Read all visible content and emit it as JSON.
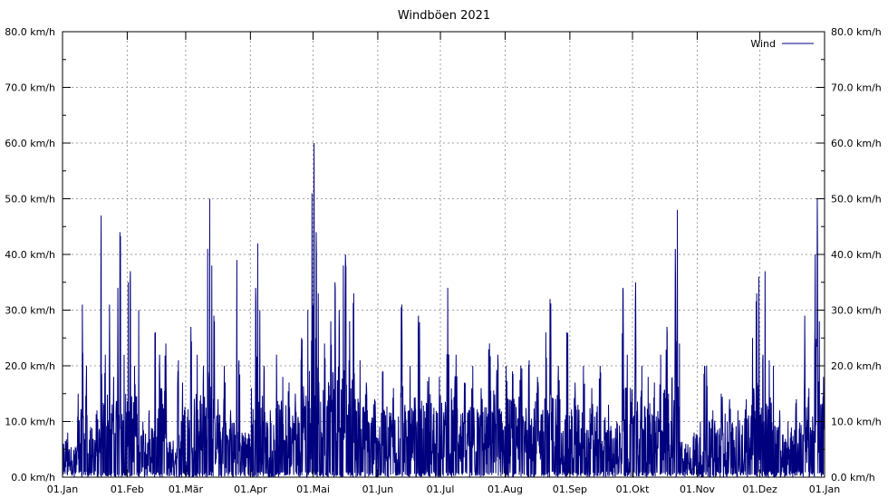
{
  "chart_data": {
    "type": "line",
    "title": "Windböen 2021",
    "xlabel": "",
    "ylabel": "",
    "ylim": [
      0,
      80
    ],
    "yunit": "km/h",
    "y_ticks": [
      "0.0 km/h",
      "10.0 km/h",
      "20.0 km/h",
      "30.0 km/h",
      "40.0 km/h",
      "50.0 km/h",
      "60.0 km/h",
      "70.0 km/h",
      "80.0 km/h"
    ],
    "x_ticks": [
      "01.Jan",
      "01.Feb",
      "01.Mär",
      "01.Apr",
      "01.Mai",
      "01.Jun",
      "01.Jul",
      "01.Aug",
      "01.Sep",
      "01.Okt",
      "01.Nov",
      "01.Dez",
      "01.Jan"
    ],
    "grid": true,
    "legend_position": "top-right",
    "series": [
      {
        "name": "Wind",
        "color": "#00007f",
        "peaks": [
          {
            "x": "2021-01-01",
            "y": 6
          },
          {
            "x": "2021-01-03",
            "y": 8
          },
          {
            "x": "2021-01-05",
            "y": 3
          },
          {
            "x": "2021-01-08",
            "y": 15
          },
          {
            "x": "2021-01-10",
            "y": 31
          },
          {
            "x": "2021-01-12",
            "y": 20
          },
          {
            "x": "2021-01-14",
            "y": 9
          },
          {
            "x": "2021-01-17",
            "y": 12
          },
          {
            "x": "2021-01-19",
            "y": 47
          },
          {
            "x": "2021-01-21",
            "y": 22
          },
          {
            "x": "2021-01-23",
            "y": 31
          },
          {
            "x": "2021-01-25",
            "y": 18
          },
          {
            "x": "2021-01-27",
            "y": 34
          },
          {
            "x": "2021-01-28",
            "y": 44
          },
          {
            "x": "2021-01-30",
            "y": 22
          },
          {
            "x": "2021-02-01",
            "y": 35
          },
          {
            "x": "2021-02-02",
            "y": 37
          },
          {
            "x": "2021-02-04",
            "y": 20
          },
          {
            "x": "2021-02-06",
            "y": 30
          },
          {
            "x": "2021-02-08",
            "y": 10
          },
          {
            "x": "2021-02-11",
            "y": 12
          },
          {
            "x": "2021-02-14",
            "y": 26
          },
          {
            "x": "2021-02-16",
            "y": 22
          },
          {
            "x": "2021-02-19",
            "y": 24
          },
          {
            "x": "2021-02-22",
            "y": 5
          },
          {
            "x": "2021-02-25",
            "y": 21
          },
          {
            "x": "2021-02-27",
            "y": 17
          },
          {
            "x": "2021-03-03",
            "y": 27
          },
          {
            "x": "2021-03-06",
            "y": 22
          },
          {
            "x": "2021-03-09",
            "y": 20
          },
          {
            "x": "2021-03-11",
            "y": 41
          },
          {
            "x": "2021-03-12",
            "y": 50
          },
          {
            "x": "2021-03-13",
            "y": 38
          },
          {
            "x": "2021-03-14",
            "y": 29
          },
          {
            "x": "2021-03-16",
            "y": 14
          },
          {
            "x": "2021-03-19",
            "y": 20
          },
          {
            "x": "2021-03-22",
            "y": 12
          },
          {
            "x": "2021-03-25",
            "y": 39
          },
          {
            "x": "2021-03-26",
            "y": 21
          },
          {
            "x": "2021-03-29",
            "y": 8
          },
          {
            "x": "2021-04-01",
            "y": 16
          },
          {
            "x": "2021-04-03",
            "y": 34
          },
          {
            "x": "2021-04-04",
            "y": 42
          },
          {
            "x": "2021-04-05",
            "y": 30
          },
          {
            "x": "2021-04-07",
            "y": 20
          },
          {
            "x": "2021-04-10",
            "y": 12
          },
          {
            "x": "2021-04-13",
            "y": 22
          },
          {
            "x": "2021-04-16",
            "y": 18
          },
          {
            "x": "2021-04-19",
            "y": 17
          },
          {
            "x": "2021-04-22",
            "y": 15
          },
          {
            "x": "2021-04-25",
            "y": 25
          },
          {
            "x": "2021-04-28",
            "y": 30
          },
          {
            "x": "2021-04-30",
            "y": 51
          },
          {
            "x": "2021-05-01",
            "y": 60
          },
          {
            "x": "2021-05-02",
            "y": 44
          },
          {
            "x": "2021-05-03",
            "y": 33
          },
          {
            "x": "2021-05-06",
            "y": 24
          },
          {
            "x": "2021-05-09",
            "y": 28
          },
          {
            "x": "2021-05-11",
            "y": 35
          },
          {
            "x": "2021-05-13",
            "y": 30
          },
          {
            "x": "2021-05-15",
            "y": 38
          },
          {
            "x": "2021-05-16",
            "y": 40
          },
          {
            "x": "2021-05-18",
            "y": 28
          },
          {
            "x": "2021-05-20",
            "y": 33
          },
          {
            "x": "2021-05-23",
            "y": 21
          },
          {
            "x": "2021-05-26",
            "y": 17
          },
          {
            "x": "2021-05-30",
            "y": 14
          },
          {
            "x": "2021-06-03",
            "y": 19
          },
          {
            "x": "2021-06-08",
            "y": 16
          },
          {
            "x": "2021-06-12",
            "y": 31
          },
          {
            "x": "2021-06-16",
            "y": 20
          },
          {
            "x": "2021-06-20",
            "y": 29
          },
          {
            "x": "2021-06-25",
            "y": 18
          },
          {
            "x": "2021-06-30",
            "y": 18
          },
          {
            "x": "2021-07-04",
            "y": 34
          },
          {
            "x": "2021-07-08",
            "y": 22
          },
          {
            "x": "2021-07-12",
            "y": 17
          },
          {
            "x": "2021-07-16",
            "y": 20
          },
          {
            "x": "2021-07-20",
            "y": 16
          },
          {
            "x": "2021-07-24",
            "y": 24
          },
          {
            "x": "2021-07-28",
            "y": 22
          },
          {
            "x": "2021-08-01",
            "y": 20
          },
          {
            "x": "2021-08-04",
            "y": 19
          },
          {
            "x": "2021-08-08",
            "y": 20
          },
          {
            "x": "2021-08-12",
            "y": 21
          },
          {
            "x": "2021-08-16",
            "y": 18
          },
          {
            "x": "2021-08-20",
            "y": 26
          },
          {
            "x": "2021-08-22",
            "y": 32
          },
          {
            "x": "2021-08-26",
            "y": 20
          },
          {
            "x": "2021-08-30",
            "y": 26
          },
          {
            "x": "2021-09-03",
            "y": 17
          },
          {
            "x": "2021-09-07",
            "y": 20
          },
          {
            "x": "2021-09-11",
            "y": 16
          },
          {
            "x": "2021-09-15",
            "y": 20
          },
          {
            "x": "2021-09-19",
            "y": 13
          },
          {
            "x": "2021-09-23",
            "y": 10
          },
          {
            "x": "2021-09-26",
            "y": 34
          },
          {
            "x": "2021-09-28",
            "y": 22
          },
          {
            "x": "2021-10-02",
            "y": 35
          },
          {
            "x": "2021-10-05",
            "y": 20
          },
          {
            "x": "2021-10-08",
            "y": 18
          },
          {
            "x": "2021-10-11",
            "y": 17
          },
          {
            "x": "2021-10-14",
            "y": 22
          },
          {
            "x": "2021-10-17",
            "y": 27
          },
          {
            "x": "2021-10-21",
            "y": 41
          },
          {
            "x": "2021-10-22",
            "y": 48
          },
          {
            "x": "2021-10-23",
            "y": 24
          },
          {
            "x": "2021-10-26",
            "y": 6
          },
          {
            "x": "2021-10-30",
            "y": 8
          },
          {
            "x": "2021-11-02",
            "y": 10
          },
          {
            "x": "2021-11-04",
            "y": 20
          },
          {
            "x": "2021-11-05",
            "y": 20
          },
          {
            "x": "2021-11-08",
            "y": 12
          },
          {
            "x": "2021-11-12",
            "y": 15
          },
          {
            "x": "2021-11-16",
            "y": 14
          },
          {
            "x": "2021-11-20",
            "y": 12
          },
          {
            "x": "2021-11-24",
            "y": 14
          },
          {
            "x": "2021-11-27",
            "y": 25
          },
          {
            "x": "2021-11-29",
            "y": 33
          },
          {
            "x": "2021-11-30",
            "y": 36
          },
          {
            "x": "2021-12-02",
            "y": 22
          },
          {
            "x": "2021-12-03",
            "y": 37
          },
          {
            "x": "2021-12-05",
            "y": 21
          },
          {
            "x": "2021-12-07",
            "y": 20
          },
          {
            "x": "2021-12-10",
            "y": 12
          },
          {
            "x": "2021-12-14",
            "y": 10
          },
          {
            "x": "2021-12-18",
            "y": 14
          },
          {
            "x": "2021-12-22",
            "y": 29
          },
          {
            "x": "2021-12-24",
            "y": 16
          },
          {
            "x": "2021-12-27",
            "y": 40
          },
          {
            "x": "2021-12-28",
            "y": 50
          },
          {
            "x": "2021-12-29",
            "y": 28
          },
          {
            "x": "2021-12-31",
            "y": 18
          }
        ]
      }
    ]
  }
}
